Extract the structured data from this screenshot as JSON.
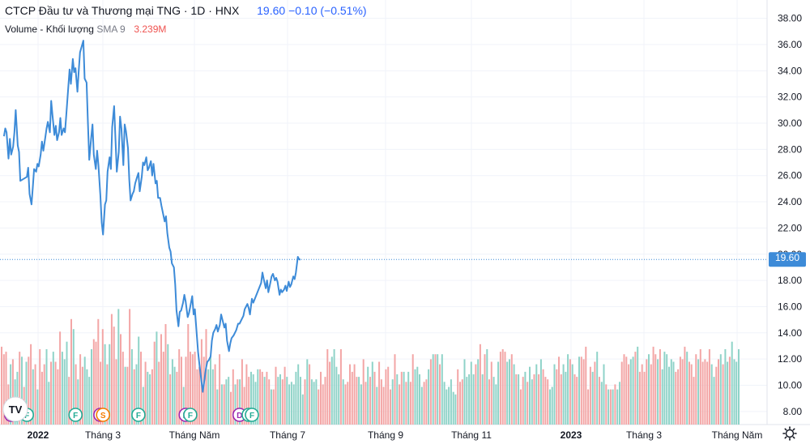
{
  "header": {
    "title": "CTCP Đầu tư và Thương mại TNG · 1D · HNX",
    "last_price": "19.60",
    "change": "−0.10 (−0.51%)",
    "volume_label": "Volume - Khối lượng",
    "volume_sma_label": "SMA 9",
    "volume_value": "3.239M"
  },
  "colors": {
    "line": "#3d8bd8",
    "up_volume": "#8fd3c8",
    "down_volume": "#f3a6a6",
    "price_tag_bg": "#3d8bd8",
    "grid": "#f0f3fa"
  },
  "chart_data": {
    "type": "line",
    "x_tick_labels": [
      "2022",
      "Tháng 3",
      "Tháng Năm",
      "Tháng 7",
      "Tháng 9",
      "Tháng 11",
      "2023",
      "Tháng 3",
      "Tháng Năm"
    ],
    "y_tick_labels": [
      "8.00",
      "10.00",
      "12.00",
      "14.00",
      "16.00",
      "18.00",
      "20.00",
      "22.00",
      "24.00",
      "26.00",
      "28.00",
      "30.00",
      "32.00",
      "34.00",
      "36.00",
      "38.00"
    ],
    "ylim": [
      7.0,
      39.4
    ],
    "last_price_label": "19.60",
    "series": [
      {
        "points": [
          [
            "2022-01-03",
            29.0
          ],
          [
            "2022-01-05",
            29.6
          ],
          [
            "2022-01-07",
            29.3
          ],
          [
            "2022-01-10",
            27.3
          ],
          [
            "2022-01-12",
            28.8
          ],
          [
            "2022-01-14",
            27.6
          ],
          [
            "2022-01-17",
            28.2
          ],
          [
            "2022-01-19",
            29.3
          ],
          [
            "2022-01-21",
            31.0
          ],
          [
            "2022-01-24",
            28.3
          ],
          [
            "2022-01-26",
            27.8
          ],
          [
            "2022-01-28",
            25.6
          ],
          [
            "2022-02-07",
            25.9
          ],
          [
            "2022-02-09",
            26.6
          ],
          [
            "2022-02-11",
            24.6
          ],
          [
            "2022-02-14",
            23.8
          ],
          [
            "2022-02-16",
            25.1
          ],
          [
            "2022-02-18",
            26.5
          ],
          [
            "2022-02-21",
            26.3
          ],
          [
            "2022-02-23",
            26.9
          ],
          [
            "2022-02-25",
            26.7
          ],
          [
            "2022-02-28",
            27.6
          ],
          [
            "2022-03-02",
            28.6
          ],
          [
            "2022-03-04",
            27.9
          ],
          [
            "2022-03-07",
            28.9
          ],
          [
            "2022-03-09",
            29.6
          ],
          [
            "2022-03-11",
            30.1
          ],
          [
            "2022-03-14",
            29.3
          ],
          [
            "2022-03-16",
            31.7
          ],
          [
            "2022-03-18",
            30.6
          ],
          [
            "2022-03-21",
            29.1
          ],
          [
            "2022-03-23",
            29.8
          ],
          [
            "2022-03-25",
            28.7
          ],
          [
            "2022-03-28",
            29.3
          ],
          [
            "2022-03-30",
            30.4
          ],
          [
            "2022-04-01",
            29.1
          ],
          [
            "2022-04-04",
            29.6
          ],
          [
            "2022-04-06",
            29.3
          ],
          [
            "2022-04-08",
            30.6
          ],
          [
            "2022-04-13",
            34.1
          ],
          [
            "2022-04-15",
            33.0
          ],
          [
            "2022-04-18",
            34.9
          ],
          [
            "2022-04-20",
            33.9
          ],
          [
            "2022-04-22",
            34.2
          ],
          [
            "2022-04-25",
            32.4
          ],
          [
            "2022-04-27",
            34.0
          ],
          [
            "2022-04-29",
            35.4
          ],
          [
            "2022-05-04",
            36.3
          ],
          [
            "2022-05-06",
            33.4
          ],
          [
            "2022-05-09",
            33.1
          ],
          [
            "2022-05-11",
            30.1
          ],
          [
            "2022-05-13",
            27.2
          ],
          [
            "2022-05-16",
            28.9
          ],
          [
            "2022-05-18",
            29.9
          ],
          [
            "2022-05-20",
            27.6
          ],
          [
            "2022-05-23",
            26.5
          ],
          [
            "2022-05-25",
            27.9
          ],
          [
            "2022-05-27",
            26.8
          ],
          [
            "2022-05-30",
            24.5
          ],
          [
            "2022-06-01",
            22.4
          ],
          [
            "2022-06-03",
            21.5
          ],
          [
            "2022-06-06",
            23.8
          ],
          [
            "2022-06-08",
            24.1
          ],
          [
            "2022-06-10",
            26.3
          ],
          [
            "2022-06-13",
            27.4
          ],
          [
            "2022-06-15",
            26.5
          ],
          [
            "2022-06-17",
            29.7
          ],
          [
            "2022-06-20",
            31.3
          ],
          [
            "2022-06-22",
            28.7
          ],
          [
            "2022-06-24",
            26.3
          ],
          [
            "2022-06-27",
            27.8
          ],
          [
            "2022-06-29",
            30.5
          ],
          [
            "2022-07-01",
            29.6
          ],
          [
            "2022-07-04",
            26.8
          ],
          [
            "2022-07-06",
            29.9
          ],
          [
            "2022-07-08",
            29.4
          ],
          [
            "2022-07-11",
            28.1
          ],
          [
            "2022-07-13",
            25.7
          ],
          [
            "2022-07-15",
            24.1
          ],
          [
            "2022-07-18",
            24.6
          ],
          [
            "2022-07-20",
            24.8
          ],
          [
            "2022-07-22",
            25.4
          ],
          [
            "2022-07-25",
            25.9
          ],
          [
            "2022-07-27",
            26.2
          ],
          [
            "2022-07-29",
            24.8
          ],
          [
            "2022-08-01",
            25.9
          ],
          [
            "2022-08-03",
            27.0
          ],
          [
            "2022-08-05",
            26.8
          ],
          [
            "2022-08-08",
            27.4
          ],
          [
            "2022-08-10",
            26.4
          ],
          [
            "2022-08-12",
            26.6
          ],
          [
            "2022-08-15",
            27.1
          ],
          [
            "2022-08-17",
            26.0
          ],
          [
            "2022-08-19",
            26.9
          ],
          [
            "2022-08-22",
            25.4
          ],
          [
            "2022-08-24",
            25.6
          ],
          [
            "2022-08-26",
            24.3
          ],
          [
            "2022-08-29",
            24.3
          ],
          [
            "2022-08-31",
            23.7
          ],
          [
            "2022-09-05",
            22.5
          ],
          [
            "2022-09-07",
            22.9
          ],
          [
            "2022-09-09",
            21.6
          ],
          [
            "2022-09-12",
            20.5
          ],
          [
            "2022-09-14",
            20.2
          ],
          [
            "2022-09-16",
            19.3
          ],
          [
            "2022-09-19",
            19.0
          ],
          [
            "2022-09-21",
            17.7
          ],
          [
            "2022-09-23",
            15.7
          ],
          [
            "2022-09-26",
            14.5
          ],
          [
            "2022-09-28",
            15.6
          ],
          [
            "2022-09-30",
            15.7
          ],
          [
            "2022-10-03",
            16.3
          ],
          [
            "2022-10-05",
            16.9
          ],
          [
            "2022-10-07",
            16.4
          ],
          [
            "2022-10-10",
            15.2
          ],
          [
            "2022-10-12",
            15.5
          ],
          [
            "2022-10-14",
            16.0
          ],
          [
            "2022-10-17",
            16.8
          ],
          [
            "2022-10-19",
            15.4
          ],
          [
            "2022-10-21",
            15.8
          ],
          [
            "2022-10-24",
            13.8
          ],
          [
            "2022-10-26",
            12.5
          ],
          [
            "2022-10-28",
            11.6
          ],
          [
            "2022-10-31",
            10.3
          ],
          [
            "2022-11-02",
            9.5
          ],
          [
            "2022-11-04",
            10.2
          ],
          [
            "2022-11-07",
            11.3
          ],
          [
            "2022-11-09",
            11.8
          ],
          [
            "2022-11-11",
            11.9
          ],
          [
            "2022-11-14",
            12.2
          ],
          [
            "2022-11-16",
            13.4
          ],
          [
            "2022-11-18",
            14.0
          ],
          [
            "2022-11-21",
            14.3
          ],
          [
            "2022-11-23",
            14.6
          ],
          [
            "2022-11-25",
            14.1
          ],
          [
            "2022-11-28",
            14.6
          ],
          [
            "2022-11-30",
            15.4
          ],
          [
            "2022-12-02",
            15.0
          ],
          [
            "2022-12-05",
            14.4
          ],
          [
            "2022-12-07",
            14.7
          ],
          [
            "2022-12-09",
            13.4
          ],
          [
            "2022-12-12",
            12.6
          ],
          [
            "2022-12-14",
            13.2
          ],
          [
            "2022-12-16",
            13.6
          ],
          [
            "2022-12-19",
            13.8
          ],
          [
            "2022-12-21",
            14.0
          ],
          [
            "2022-12-23",
            14.2
          ],
          [
            "2022-12-26",
            14.7
          ],
          [
            "2022-12-28",
            14.7
          ],
          [
            "2023-01-03",
            15.3
          ],
          [
            "2023-01-05",
            15.8
          ],
          [
            "2023-01-09",
            16.2
          ],
          [
            "2023-01-11",
            15.9
          ],
          [
            "2023-01-13",
            15.4
          ],
          [
            "2023-01-16",
            16.6
          ],
          [
            "2023-01-18",
            16.3
          ],
          [
            "2023-01-30",
            17.8
          ],
          [
            "2023-02-01",
            18.6
          ],
          [
            "2023-02-03",
            18.1
          ],
          [
            "2023-02-06",
            17.4
          ],
          [
            "2023-02-08",
            18.0
          ],
          [
            "2023-02-10",
            17.1
          ],
          [
            "2023-02-13",
            17.8
          ],
          [
            "2023-02-15",
            18.3
          ],
          [
            "2023-02-17",
            18.5
          ],
          [
            "2023-02-20",
            18.0
          ],
          [
            "2023-02-22",
            18.2
          ],
          [
            "2023-02-24",
            17.9
          ],
          [
            "2023-02-27",
            16.9
          ],
          [
            "2023-03-01",
            17.3
          ],
          [
            "2023-03-03",
            17.1
          ],
          [
            "2023-03-06",
            17.3
          ],
          [
            "2023-03-08",
            17.6
          ],
          [
            "2023-03-10",
            17.2
          ],
          [
            "2023-03-13",
            17.9
          ],
          [
            "2023-03-15",
            17.5
          ],
          [
            "2023-03-17",
            17.7
          ],
          [
            "2023-03-20",
            18.3
          ],
          [
            "2023-03-22",
            18.1
          ],
          [
            "2023-03-24",
            18.6
          ],
          [
            "2023-03-27",
            19.8
          ],
          [
            "2023-03-29",
            19.6
          ],
          [
            "2023-03-31",
            19.6
          ]
        ]
      }
    ],
    "volume_series": {
      "name": "Volume - Khối lượng",
      "values": [
        3.1,
        2.8,
        2.9,
        1.6,
        2.4,
        2.6,
        1.8,
        2.1,
        2.9,
        2.7,
        1.5,
        2.5,
        2.7,
        3.2,
        2.2,
        2.4,
        1.4,
        3.0,
        2.1,
        2.4,
        3.0,
        1.7,
        2.5,
        2.9,
        2.5,
        2.2,
        3.7,
        2.9,
        2.6,
        3.3,
        1.9,
        4.2,
        3.8,
        2.4,
        1.8,
        2.8,
        2.3,
        2.7,
        2.2,
        1.9,
        3.0,
        3.4,
        3.3,
        4.2,
        2.5,
        3.8,
        3.2,
        2.4,
        3.2,
        4.4,
        3.9,
        2.6,
        4.6,
        3.6,
        2.9,
        2.3,
        2.3,
        4.6,
        3.0,
        2.2,
        2.4,
        3.5,
        2.9,
        1.5,
        2.5,
        2.1,
        2.0,
        2.2,
        3.3,
        3.7,
        2.5,
        3.6,
        2.9,
        4.0,
        3.2,
        2.0,
        2.6,
        2.3,
        2.1,
        3.0,
        2.7,
        1.5,
        2.7,
        4.0,
        2.9,
        2.8,
        2.9,
        2.2,
        2.3,
        3.4,
        2.7,
        3.8,
        2.2,
        2.7,
        2.2,
        2.4,
        1.4,
        2.8,
        1.6,
        1.6,
        1.8,
        1.9,
        1.3,
        2.2,
        1.6,
        1.8,
        1.8,
        2.6,
        1.5,
        2.4,
        1.9,
        2.1,
        2.0,
        1.7,
        2.2,
        2.2,
        2.1,
        1.9,
        2.1,
        1.8,
        1.4,
        1.4,
        2.3,
        1.9,
        2.0,
        1.8,
        2.3,
        1.9,
        1.6,
        1.7,
        1.6,
        2.1,
        2.4,
        1.9,
        1.2,
        1.8,
        2.6,
        2.4,
        1.8,
        1.7,
        1.8,
        1.4,
        2.1,
        1.6,
        1.9,
        3.0,
        2.5,
        2.7,
        3.0,
        2.3,
        2.0,
        3.0,
        1.8,
        1.6,
        1.7,
        2.4,
        2.1,
        2.4,
        1.9,
        1.9,
        1.6,
        2.6,
        1.7,
        2.3,
        1.9,
        2.5,
        2.1,
        1.5,
        2.5,
        1.8,
        1.5,
        2.2,
        2.3,
        1.4,
        1.8,
        2.8,
        2.0,
        1.6,
        2.1,
        2.1,
        1.7,
        2.1,
        1.7,
        2.8,
        2.2,
        2.3,
        2.0,
        1.5,
        1.7,
        1.8,
        2.2,
        2.6,
        2.8,
        2.8,
        2.8,
        2.4,
        2.8,
        1.7,
        1.4,
        1.5,
        1.8,
        1.3,
        1.2,
        2.2,
        1.7,
        1.8,
        2.6,
        1.9,
        2.0,
        2.5,
        2.0,
        2.4,
        2.6,
        3.2,
        2.0,
        2.8,
        3.0,
        1.8,
        2.5,
        1.9,
        1.6,
        2.5,
        2.9,
        3.0,
        2.9,
        2.5,
        2.6,
        2.8,
        2.4,
        2.0,
        2.0,
        1.4,
        1.9,
        2.1,
        1.7,
        2.3,
        1.8,
        2.0,
        2.4,
        2.0,
        2.6,
        2.2,
        1.9,
        1.8,
        1.4,
        1.5,
        2.4,
        2.2,
        2.7,
        2.0,
        2.4,
        2.1,
        2.8,
        2.6,
        2.4,
        2.0,
        1.9,
        2.7,
        2.7,
        2.6,
        3.1,
        1.4,
        2.3,
        2.1,
        2.5,
        2.9,
        1.9,
        1.7,
        2.4,
        1.6,
        1.4,
        1.4,
        1.4,
        1.6,
        1.4,
        1.7,
        2.5,
        2.8,
        2.7,
        2.4,
        2.6,
        2.7,
        2.9,
        3.1,
        2.1,
        2.4,
        2.1,
        2.6,
        2.8,
        2.4,
        3.1,
        2.8,
        2.6,
        3.0,
        2.2,
        2.9,
        2.8,
        2.3,
        2.6,
        2.5,
        2.1,
        2.2,
        2.7,
        2.6,
        3.1,
        2.9,
        2.5,
        2.4,
        1.9,
        2.8,
        2.6,
        3.0,
        2.5,
        2.6,
        2.5,
        3.0,
        2.4,
        1.9,
        2.3,
        2.6,
        2.8,
        2.4,
        3.0,
        2.5,
        2.7,
        3.3,
        2.6,
        2.5,
        3.0
      ]
    },
    "event_markers": [
      {
        "type": "D",
        "date": "2022-01-14"
      },
      {
        "type": "F",
        "date": "2022-01-21"
      },
      {
        "type": "F",
        "date": "2022-02-07"
      },
      {
        "type": "F",
        "date": "2022-04-22"
      },
      {
        "type": "D",
        "date": "2022-05-30"
      },
      {
        "type": "S",
        "date": "2022-06-03"
      },
      {
        "type": "F",
        "date": "2022-07-27"
      },
      {
        "type": "D",
        "date": "2022-10-07"
      },
      {
        "type": "F",
        "date": "2022-10-14"
      },
      {
        "type": "D",
        "date": "2022-12-28"
      },
      {
        "type": "F",
        "date": "2023-01-11"
      },
      {
        "type": "F",
        "date": "2023-01-16"
      }
    ]
  },
  "axis_corner_icon": "gear-icon",
  "logo_text": "TV"
}
